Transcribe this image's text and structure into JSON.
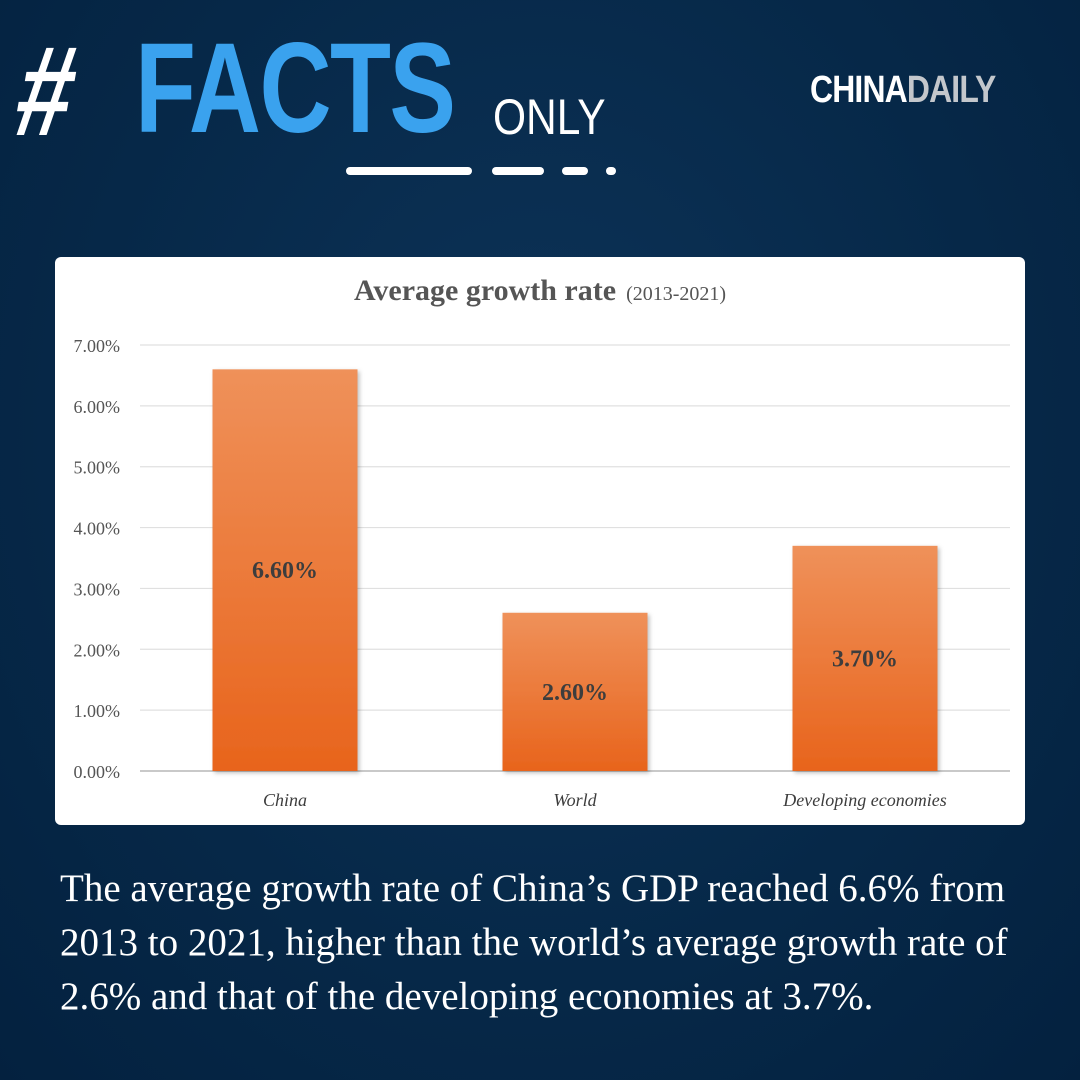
{
  "header": {
    "hash": "#",
    "facts": "FACTS",
    "only": "ONLY",
    "logo_china": "CHINA",
    "logo_daily": "DAILY"
  },
  "colors": {
    "background": "#062848",
    "facts_blue": "#3aa2ee",
    "bar_top": "#ef915a",
    "bar_bottom": "#e8641c"
  },
  "chart_data": {
    "type": "bar",
    "title": "Average growth rate",
    "subtitle": "(2013-2021)",
    "categories": [
      "China",
      "World",
      "Developing economies"
    ],
    "values": [
      6.6,
      2.6,
      3.7
    ],
    "data_labels": [
      "6.60%",
      "2.60%",
      "3.70%"
    ],
    "y_ticks": [
      "0.00%",
      "1.00%",
      "2.00%",
      "3.00%",
      "4.00%",
      "5.00%",
      "6.00%",
      "7.00%"
    ],
    "ylim": [
      0,
      7
    ],
    "grid": true,
    "xlabel": "",
    "ylabel": ""
  },
  "caption": "The average growth rate of China’s GDP reached 6.6% from 2013 to 2021, higher than the world’s average growth rate of 2.6% and that of the developing economies at 3.7%."
}
